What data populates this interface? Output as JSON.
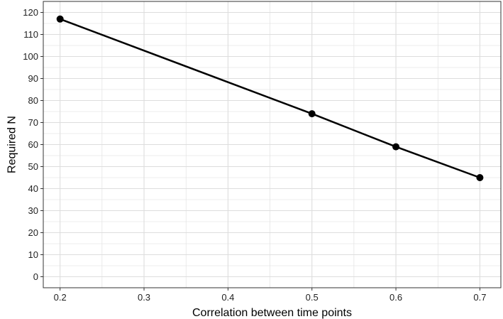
{
  "chart_data": {
    "type": "line",
    "title": "",
    "xlabel": "Correlation between time points",
    "ylabel": "Required N",
    "x": [
      0.2,
      0.5,
      0.6,
      0.7
    ],
    "series": [
      {
        "values": [
          117,
          74,
          59,
          45
        ]
      }
    ],
    "xlim": [
      0.18,
      0.725
    ],
    "ylim": [
      -5,
      125
    ],
    "x_ticks": [
      0.2,
      0.3,
      0.4,
      0.5,
      0.6,
      0.7
    ],
    "x_tick_labels": [
      "0.2",
      "0.3",
      "0.4",
      "0.5",
      "0.6",
      "0.7"
    ],
    "y_ticks": [
      0,
      10,
      20,
      30,
      40,
      50,
      60,
      70,
      80,
      90,
      100,
      110,
      120
    ],
    "y_tick_labels": [
      "0",
      "10",
      "20",
      "30",
      "40",
      "50",
      "60",
      "70",
      "80",
      "90",
      "100",
      "110",
      "120"
    ],
    "grid": true,
    "legend": "none",
    "colors": {
      "line": "#000000",
      "grid": "#dddddd",
      "panel_border": "#333333"
    }
  }
}
